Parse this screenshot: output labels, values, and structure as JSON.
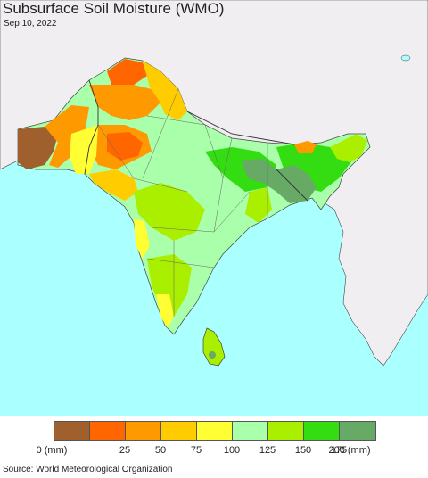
{
  "title": "Subsurface Soil Moisture (WMO)",
  "date": "Sep 10, 2022",
  "source": "Source: World Meteorological Organization",
  "legend": {
    "colors": [
      "#a0602e",
      "#ff6600",
      "#ff9900",
      "#ffcc00",
      "#ffff33",
      "#aaffaa",
      "#aaee00",
      "#33dd11",
      "#66aa66"
    ],
    "labels": [
      "0 (mm)",
      "25",
      "50",
      "75",
      "100",
      "125",
      "150",
      "175",
      "200 (mm)"
    ]
  },
  "colors": {
    "sea": "#aaffff",
    "land_outside": "#f0eef0",
    "border": "#444444"
  }
}
